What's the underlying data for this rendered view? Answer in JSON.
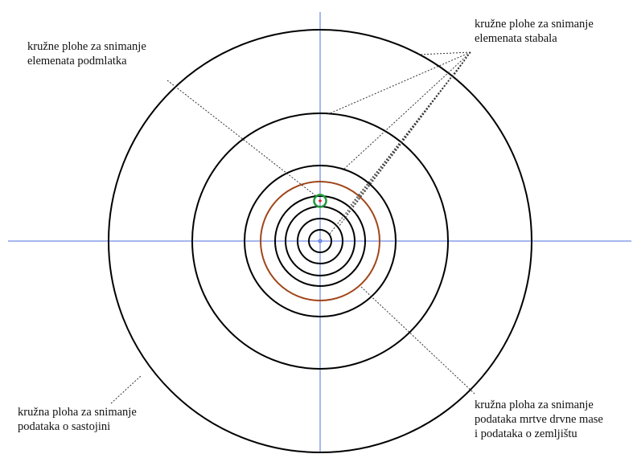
{
  "labels": {
    "tree_plots": {
      "line1": "kružne plohe za snimanje",
      "line2": "elemenata stabala"
    },
    "regen_plots": {
      "line1": "kružne plohe za snimanje",
      "line2": "elemenata podmlatka"
    },
    "stand_plot": {
      "line1": "kružna ploha za snimanje",
      "line2": "podataka o sastojini"
    },
    "deadwood_plot": {
      "line1": "kružna ploha za snimanje",
      "line2": "podataka mrtve drvne mase",
      "line3": "i podataka o zemljištu"
    }
  },
  "colors": {
    "axis": "#4f6fe0",
    "black_circle": "#000000",
    "deadwood_circle": "#a0461a",
    "regen_circle": "#1e9a3a",
    "center_marker": "#d02020",
    "leader": "#333333"
  },
  "circles": [
    {
      "role": "stand",
      "color_key": "black_circle"
    },
    {
      "role": "tree",
      "color_key": "black_circle"
    },
    {
      "role": "tree",
      "color_key": "black_circle"
    },
    {
      "role": "deadwood",
      "color_key": "deadwood_circle"
    },
    {
      "role": "tree",
      "color_key": "black_circle"
    },
    {
      "role": "tree",
      "color_key": "black_circle"
    },
    {
      "role": "tree",
      "color_key": "black_circle"
    },
    {
      "role": "tree",
      "color_key": "black_circle"
    },
    {
      "role": "center",
      "color_key": "axis"
    }
  ]
}
